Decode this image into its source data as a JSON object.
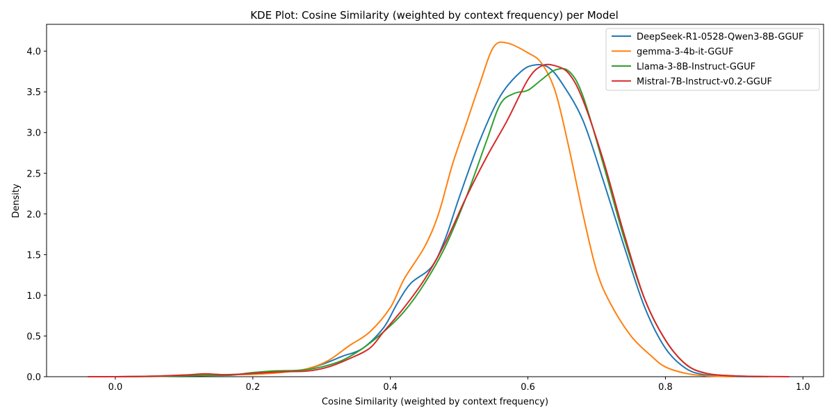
{
  "chart_data": {
    "type": "line",
    "title": "KDE Plot: Cosine Similarity (weighted by context frequency) per Model",
    "xlabel": "Cosine Similarity (weighted by context frequency)",
    "ylabel": "Density",
    "xlim": [
      -0.1,
      1.03
    ],
    "ylim": [
      0,
      4.33
    ],
    "xticks": [
      "0.0",
      "0.2",
      "0.4",
      "0.6",
      "0.8",
      "1.0"
    ],
    "yticks": [
      "0.0",
      "0.5",
      "1.0",
      "1.5",
      "2.0",
      "2.5",
      "3.0",
      "3.5",
      "4.0"
    ],
    "grid": false,
    "legend_position": "top-right",
    "series": [
      {
        "name": "DeepSeek-R1-0528-Qwen3-8B-GGUF",
        "color": "#1f77b4",
        "points": [
          [
            -0.04,
            0
          ],
          [
            0.0,
            0
          ],
          [
            0.05,
            0.005
          ],
          [
            0.1,
            0.015
          ],
          [
            0.14,
            0.025
          ],
          [
            0.17,
            0.02
          ],
          [
            0.2,
            0.05
          ],
          [
            0.23,
            0.065
          ],
          [
            0.27,
            0.08
          ],
          [
            0.3,
            0.15
          ],
          [
            0.33,
            0.25
          ],
          [
            0.36,
            0.35
          ],
          [
            0.39,
            0.6
          ],
          [
            0.41,
            0.9
          ],
          [
            0.43,
            1.15
          ],
          [
            0.46,
            1.35
          ],
          [
            0.48,
            1.7
          ],
          [
            0.5,
            2.2
          ],
          [
            0.53,
            2.9
          ],
          [
            0.56,
            3.45
          ],
          [
            0.59,
            3.75
          ],
          [
            0.61,
            3.83
          ],
          [
            0.63,
            3.8
          ],
          [
            0.65,
            3.6
          ],
          [
            0.68,
            3.15
          ],
          [
            0.71,
            2.4
          ],
          [
            0.74,
            1.6
          ],
          [
            0.77,
            0.85
          ],
          [
            0.8,
            0.35
          ],
          [
            0.83,
            0.1
          ],
          [
            0.86,
            0.02
          ],
          [
            0.9,
            0.003
          ],
          [
            0.94,
            0
          ]
        ]
      },
      {
        "name": "gemma-3-4b-it-GGUF",
        "color": "#ff7f0e",
        "points": [
          [
            -0.04,
            0
          ],
          [
            0.0,
            0
          ],
          [
            0.05,
            0.005
          ],
          [
            0.1,
            0.02
          ],
          [
            0.13,
            0.03
          ],
          [
            0.16,
            0.025
          ],
          [
            0.2,
            0.03
          ],
          [
            0.24,
            0.05
          ],
          [
            0.28,
            0.1
          ],
          [
            0.31,
            0.2
          ],
          [
            0.34,
            0.38
          ],
          [
            0.37,
            0.55
          ],
          [
            0.4,
            0.85
          ],
          [
            0.42,
            1.2
          ],
          [
            0.45,
            1.6
          ],
          [
            0.47,
            2.0
          ],
          [
            0.49,
            2.6
          ],
          [
            0.51,
            3.1
          ],
          [
            0.53,
            3.6
          ],
          [
            0.55,
            4.05
          ],
          [
            0.57,
            4.1
          ],
          [
            0.6,
            3.98
          ],
          [
            0.62,
            3.85
          ],
          [
            0.64,
            3.5
          ],
          [
            0.66,
            2.8
          ],
          [
            0.68,
            2.0
          ],
          [
            0.7,
            1.3
          ],
          [
            0.72,
            0.9
          ],
          [
            0.75,
            0.5
          ],
          [
            0.78,
            0.25
          ],
          [
            0.8,
            0.12
          ],
          [
            0.83,
            0.04
          ],
          [
            0.86,
            0.01
          ],
          [
            0.9,
            0
          ]
        ]
      },
      {
        "name": "Llama-3-8B-Instruct-GGUF",
        "color": "#2ca02c",
        "points": [
          [
            -0.04,
            0
          ],
          [
            0.0,
            0
          ],
          [
            0.05,
            0.002
          ],
          [
            0.1,
            0.01
          ],
          [
            0.14,
            0.015
          ],
          [
            0.17,
            0.02
          ],
          [
            0.2,
            0.05
          ],
          [
            0.23,
            0.07
          ],
          [
            0.27,
            0.08
          ],
          [
            0.3,
            0.12
          ],
          [
            0.33,
            0.2
          ],
          [
            0.36,
            0.35
          ],
          [
            0.39,
            0.55
          ],
          [
            0.42,
            0.8
          ],
          [
            0.45,
            1.15
          ],
          [
            0.48,
            1.6
          ],
          [
            0.51,
            2.2
          ],
          [
            0.54,
            2.9
          ],
          [
            0.56,
            3.35
          ],
          [
            0.58,
            3.48
          ],
          [
            0.6,
            3.52
          ],
          [
            0.62,
            3.65
          ],
          [
            0.64,
            3.77
          ],
          [
            0.66,
            3.75
          ],
          [
            0.68,
            3.45
          ],
          [
            0.71,
            2.6
          ],
          [
            0.74,
            1.7
          ],
          [
            0.77,
            0.95
          ],
          [
            0.8,
            0.45
          ],
          [
            0.83,
            0.15
          ],
          [
            0.86,
            0.04
          ],
          [
            0.9,
            0.01
          ],
          [
            0.95,
            0
          ]
        ]
      },
      {
        "name": "Mistral-7B-Instruct-v0.2-GGUF",
        "color": "#d62728",
        "points": [
          [
            -0.04,
            0
          ],
          [
            0.0,
            0
          ],
          [
            0.05,
            0.005
          ],
          [
            0.1,
            0.02
          ],
          [
            0.13,
            0.035
          ],
          [
            0.16,
            0.025
          ],
          [
            0.2,
            0.04
          ],
          [
            0.24,
            0.06
          ],
          [
            0.28,
            0.07
          ],
          [
            0.31,
            0.12
          ],
          [
            0.34,
            0.22
          ],
          [
            0.37,
            0.35
          ],
          [
            0.39,
            0.55
          ],
          [
            0.42,
            0.85
          ],
          [
            0.45,
            1.2
          ],
          [
            0.48,
            1.65
          ],
          [
            0.51,
            2.2
          ],
          [
            0.54,
            2.7
          ],
          [
            0.57,
            3.15
          ],
          [
            0.6,
            3.65
          ],
          [
            0.62,
            3.82
          ],
          [
            0.64,
            3.82
          ],
          [
            0.66,
            3.72
          ],
          [
            0.68,
            3.4
          ],
          [
            0.71,
            2.65
          ],
          [
            0.74,
            1.75
          ],
          [
            0.77,
            0.95
          ],
          [
            0.8,
            0.45
          ],
          [
            0.83,
            0.15
          ],
          [
            0.86,
            0.04
          ],
          [
            0.9,
            0.01
          ],
          [
            0.95,
            0.002
          ],
          [
            0.98,
            0
          ]
        ]
      }
    ]
  }
}
